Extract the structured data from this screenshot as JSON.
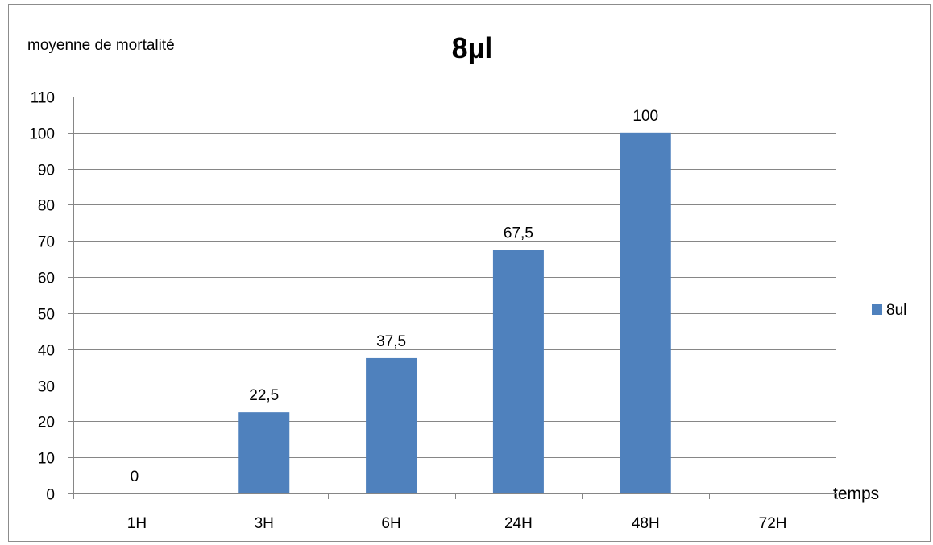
{
  "chart_data": {
    "type": "bar",
    "title": "8µl",
    "ylabel": "moyenne de mortalité",
    "xlabel": "temps",
    "categories": [
      "1H",
      "3H",
      "6H",
      "24H",
      "48H",
      "72H"
    ],
    "series": [
      {
        "name": "8ul",
        "values": [
          0,
          22.5,
          37.5,
          67.5,
          100,
          null
        ],
        "data_labels": [
          "0",
          "22,5",
          "37,5",
          "67,5",
          "100",
          ""
        ],
        "color": "#4f81bd"
      }
    ],
    "ylim": [
      0,
      110
    ],
    "yticks": [
      0,
      10,
      20,
      30,
      40,
      50,
      60,
      70,
      80,
      90,
      100,
      110
    ],
    "grid": true,
    "legend": "right"
  }
}
